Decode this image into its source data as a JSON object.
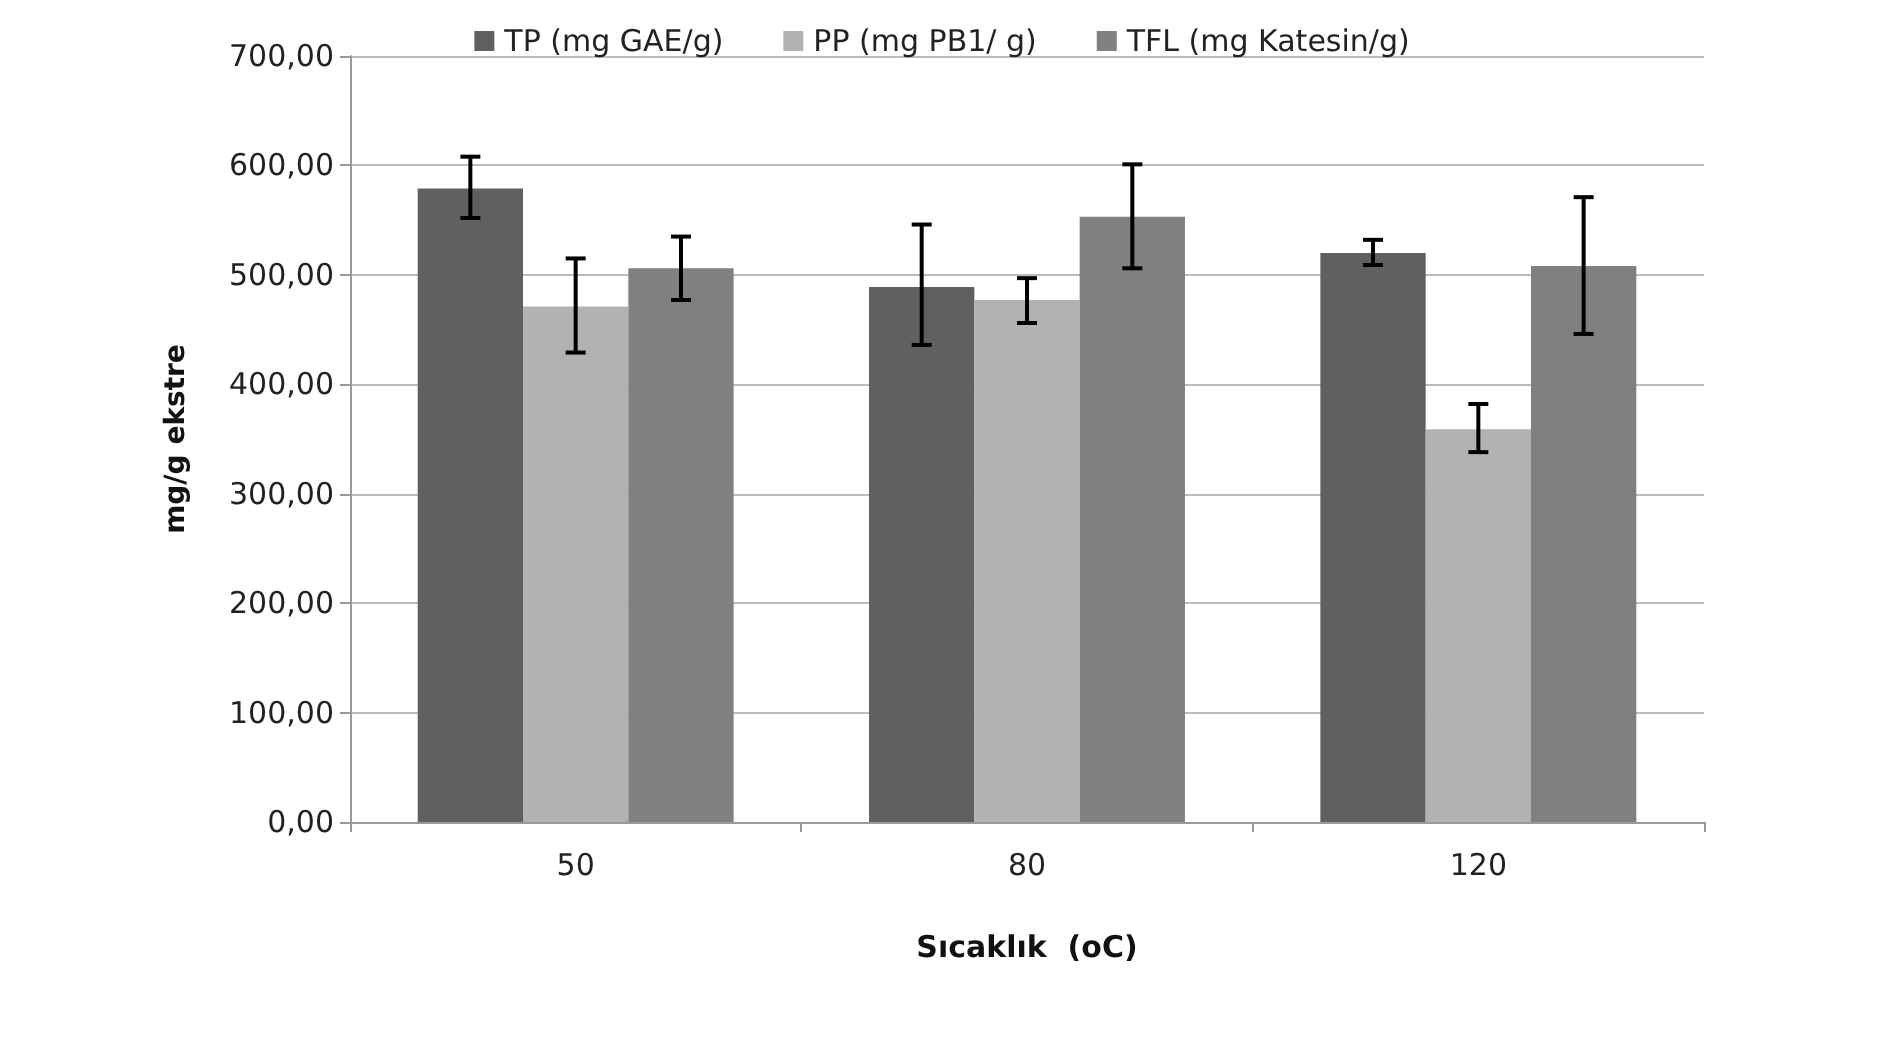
{
  "chart_data": {
    "type": "bar",
    "xlabel": "Sıcaklık  (oC)",
    "ylabel": "mg/g ekstre",
    "categories": [
      "50",
      "80",
      "120"
    ],
    "series": [
      {
        "name": "TP (mg GAE/g)",
        "color": "#606060",
        "values": [
          579,
          489,
          520
        ],
        "errors": [
          [
            552,
            608
          ],
          [
            436,
            546
          ],
          [
            509,
            532
          ]
        ]
      },
      {
        "name": "PP (mg PB1/ g)",
        "color": "#b2b2b2",
        "values": [
          471,
          477,
          359
        ],
        "errors": [
          [
            429,
            515
          ],
          [
            456,
            497
          ],
          [
            338,
            382
          ]
        ]
      },
      {
        "name": "TFL (mg Katesin/g)",
        "color": "#808080",
        "values": [
          506,
          553,
          508
        ],
        "errors": [
          [
            477,
            535
          ],
          [
            506,
            601
          ],
          [
            446,
            571
          ]
        ]
      }
    ],
    "ylim": [
      0,
      700
    ],
    "yticks": [
      {
        "value": 0,
        "label": "0,00"
      },
      {
        "value": 100,
        "label": "100,00"
      },
      {
        "value": 200,
        "label": "200,00"
      },
      {
        "value": 300,
        "label": "300,00"
      },
      {
        "value": 400,
        "label": "400,00"
      },
      {
        "value": 500,
        "label": "500,00"
      },
      {
        "value": 600,
        "label": "600,00"
      },
      {
        "value": 700,
        "label": "700,00"
      }
    ],
    "grid": "y",
    "legend": "top"
  }
}
